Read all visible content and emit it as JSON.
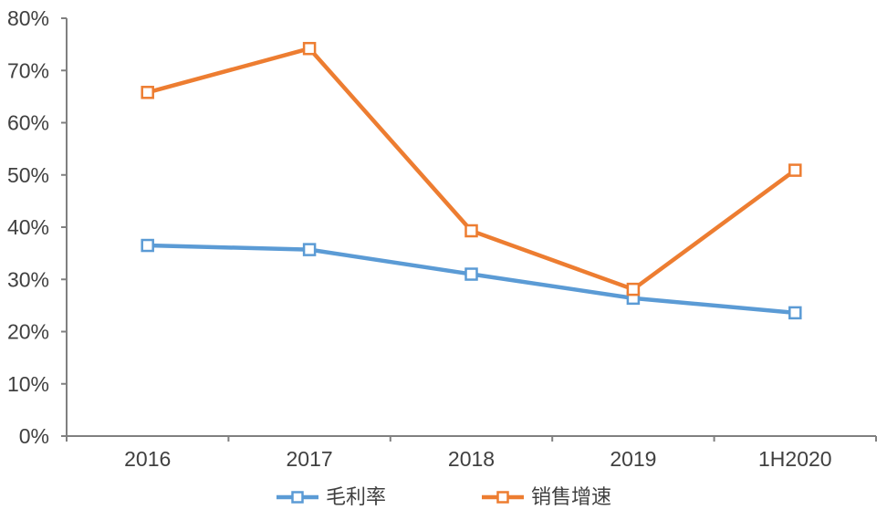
{
  "chart_data": {
    "type": "line",
    "title": "",
    "xlabel": "",
    "ylabel": "",
    "categories": [
      "2016",
      "2017",
      "2018",
      "2019",
      "1H2020"
    ],
    "series": [
      {
        "name": "毛利率",
        "color": "#5B9BD5",
        "values": [
          36.5,
          35.7,
          31.0,
          26.4,
          23.6
        ]
      },
      {
        "name": "销售增速",
        "color": "#ED7D31",
        "values": [
          65.8,
          74.2,
          39.3,
          28.1,
          50.9
        ]
      }
    ],
    "ylim": [
      0,
      80
    ],
    "ytick_step": 10,
    "ytick_suffix": "%",
    "grid": false,
    "marker": "square-hollow",
    "legend_position": "bottom",
    "axis_color": "#808080",
    "text_color": "#404040",
    "background_color": "#FFFFFF"
  }
}
